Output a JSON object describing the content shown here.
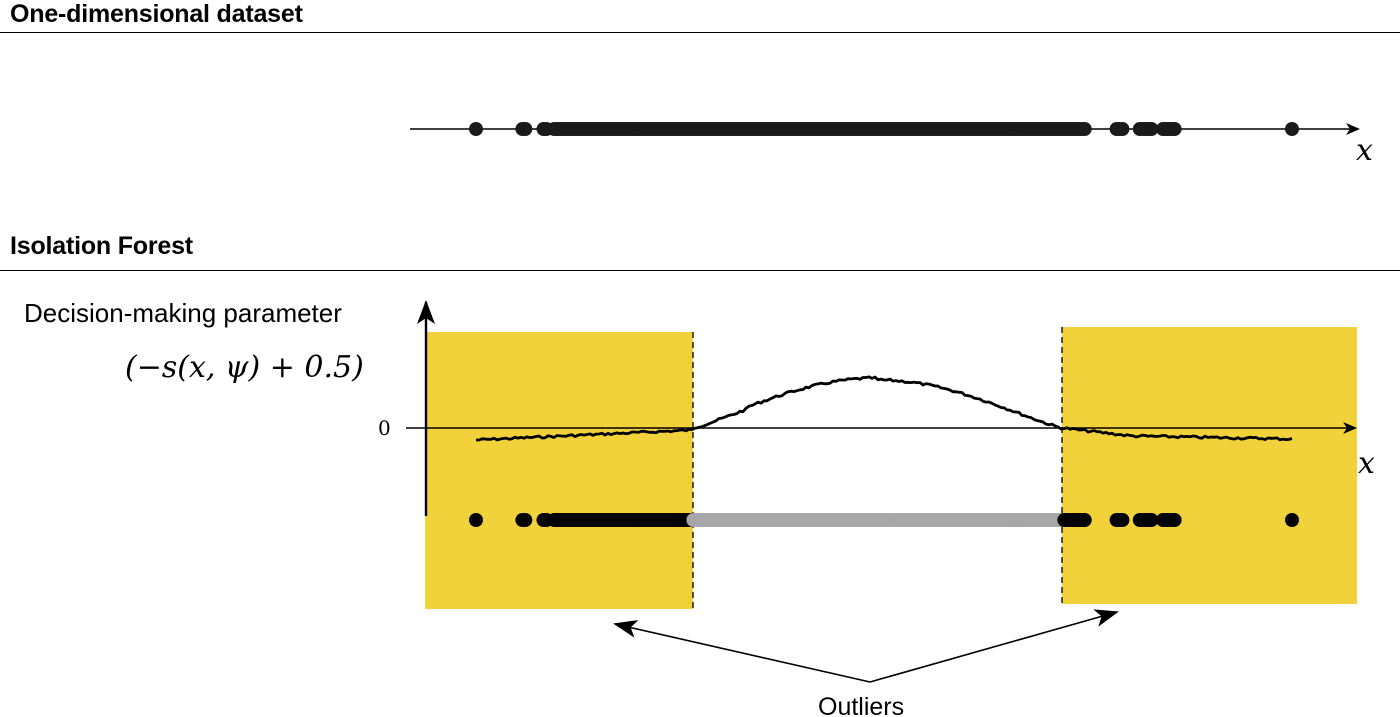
{
  "sections": {
    "dataset_title": "One-dimensional dataset",
    "forest_title": "Isolation Forest"
  },
  "top_panel": {
    "axis_label": "x",
    "points": [
      -3.15,
      -1.55,
      -1.45,
      -0.82,
      -0.72,
      -0.45,
      -0.35,
      -0.25,
      -0.15,
      -0.05,
      0.05,
      0.15,
      0.25,
      0.35,
      0.45,
      0.55,
      0.65,
      0.75,
      0.85,
      0.95,
      1.05,
      1.15,
      1.25,
      1.35,
      1.45,
      1.55,
      1.65,
      1.75,
      1.85,
      1.95,
      2.05,
      2.15,
      2.25,
      2.35,
      2.45,
      2.55,
      2.65,
      2.75,
      2.85,
      2.95,
      3.05,
      3.15,
      3.25,
      3.35,
      3.45,
      3.55,
      3.65,
      3.75,
      3.85,
      3.95,
      4.05,
      4.15,
      4.25,
      4.35,
      4.45,
      4.55,
      4.65,
      4.75,
      4.85,
      4.95,
      5.05,
      5.15,
      5.25,
      5.35,
      5.45,
      5.55,
      5.65,
      5.75,
      5.85,
      5.95,
      6.05,
      6.15,
      6.25,
      6.35,
      6.45,
      6.55,
      6.65,
      6.75,
      6.85,
      6.95,
      7.05,
      7.15,
      7.25,
      7.35,
      7.45,
      7.55,
      7.65,
      7.75,
      7.85,
      7.95,
      8.05,
      8.15,
      8.25,
      8.35,
      8.45,
      8.55,
      8.65,
      8.75,
      8.85,
      8.95,
      9.05,
      9.15,
      9.25,
      9.35,
      9.45,
      9.55,
      9.65,
      9.75,
      9.85,
      9.95,
      10.05,
      10.15,
      10.25,
      10.35,
      10.45,
      10.55,
      10.65,
      10.75,
      10.85,
      10.95,
      11.05,
      11.15,
      11.25,
      11.35,
      11.45,
      11.55,
      11.65,
      11.75,
      11.85,
      11.95,
      12.05,
      12.15,
      12.25,
      12.35,
      12.45,
      12.55,
      12.65,
      12.75,
      12.85,
      12.95,
      13.05,
      13.15,
      13.25,
      13.35,
      13.45,
      13.55,
      13.65,
      13.75,
      13.85,
      13.95,
      14.05,
      14.15,
      14.25,
      14.35,
      14.45,
      14.55,
      14.65,
      14.75,
      14.85,
      14.95,
      15.05,
      15.15,
      15.25,
      15.35,
      15.45,
      15.55,
      15.65,
      15.75,
      15.85,
      15.95,
      16.05,
      16.15,
      16.25,
      16.35,
      16.45,
      16.55,
      16.65,
      16.75,
      16.85,
      16.95,
      17.05,
      17.15,
      17.25,
      17.35,
      17.45,
      17.55,
      17.65,
      17.75,
      17.85,
      18.95,
      19.05,
      19.15,
      19.75,
      19.85,
      19.95,
      20.05,
      20.15,
      20.55,
      20.65,
      20.75,
      20.85,
      20.95,
      25.0
    ]
  },
  "bottom_panel": {
    "y_axis_label": "Decision-making parameter",
    "y_axis_formula": "(−s(x, ψ) + 0.5)",
    "zero_label": "0",
    "axis_label": "x",
    "outlier_label": "Outliers",
    "region_color": "#f2d23a",
    "outlier_point_color": "#000000",
    "inlier_point_color": "#a6a6a6"
  }
}
